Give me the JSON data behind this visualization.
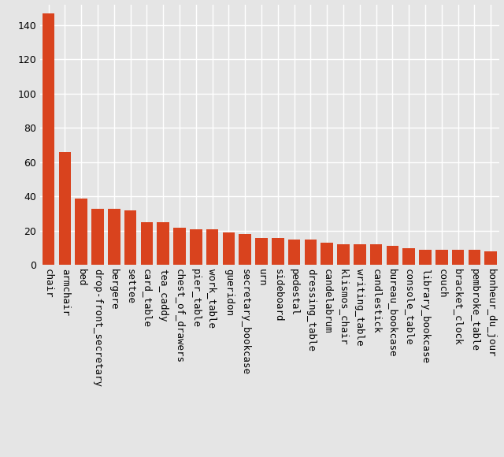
{
  "categories": [
    "chair",
    "armchair",
    "bed",
    "drop-front_secretary",
    "bergere",
    "settee",
    "card_table",
    "tea_caddy",
    "chest_of_drawers",
    "pier_table",
    "work_table",
    "gueridon",
    "secretary_bookcase",
    "urn",
    "sideboard",
    "pedestal",
    "dressing_table",
    "candelabrum",
    "klismos_chair",
    "writing_table",
    "candlestick",
    "bureau_bookcase",
    "console_table",
    "library_bookcase",
    "couch",
    "bracket_clock",
    "pembroke_table",
    "bonheur_du_jour"
  ],
  "values": [
    147,
    66,
    39,
    33,
    33,
    32,
    25,
    25,
    22,
    21,
    21,
    19,
    18,
    16,
    16,
    15,
    15,
    13,
    12,
    12,
    12,
    11,
    10,
    9,
    9,
    9,
    9,
    8
  ],
  "bar_color": "#d9431e",
  "background_color": "#e5e5e5",
  "grid_color": "#ffffff",
  "yticks": [
    0,
    20,
    40,
    60,
    80,
    100,
    120,
    140
  ],
  "ylim": [
    0,
    152
  ],
  "figsize": [
    6.4,
    5.8
  ],
  "dpi": 100,
  "tick_fontsize": 9,
  "label_rotation": 270,
  "bar_width": 0.75
}
